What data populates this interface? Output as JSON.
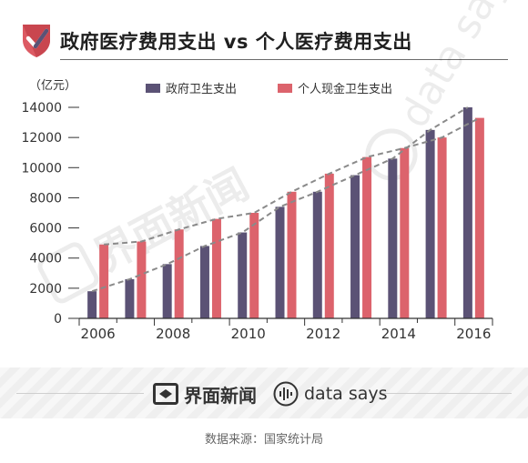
{
  "header": {
    "title": "政府医疗费用支出 vs 个人医疗费用支出"
  },
  "chart_data": {
    "type": "bar",
    "unit_label": "（亿元）",
    "categories": [
      "2006",
      "2007",
      "2008",
      "2009",
      "2010",
      "2011",
      "2012",
      "2013",
      "2014",
      "2015",
      "2016"
    ],
    "x_tick_labels": [
      "2006",
      "2008",
      "2010",
      "2012",
      "2014",
      "2016"
    ],
    "y_ticks": [
      0,
      2000,
      4000,
      6000,
      8000,
      10000,
      12000,
      14000
    ],
    "ylim": [
      0,
      14000
    ],
    "grid": false,
    "legend_position": "top",
    "series": [
      {
        "name": "政府卫生支出",
        "color": "#5b5275",
        "values": [
          1800,
          2600,
          3600,
          4800,
          5700,
          7400,
          8400,
          9500,
          10600,
          12500,
          14000
        ]
      },
      {
        "name": "个人现金卫生支出",
        "color": "#dc636c",
        "values": [
          4900,
          5100,
          5900,
          6600,
          7000,
          8400,
          9600,
          10700,
          11300,
          12000,
          13300
        ]
      }
    ],
    "trendline_color": "#8a8a8a"
  },
  "footer": {
    "brand_jiemian": "界面新闻",
    "brand_datasays": "data says",
    "source": "数据来源：国家统计局"
  },
  "colors": {
    "logo_red": "#dc5a63",
    "logo_dark": "#5b5275"
  }
}
